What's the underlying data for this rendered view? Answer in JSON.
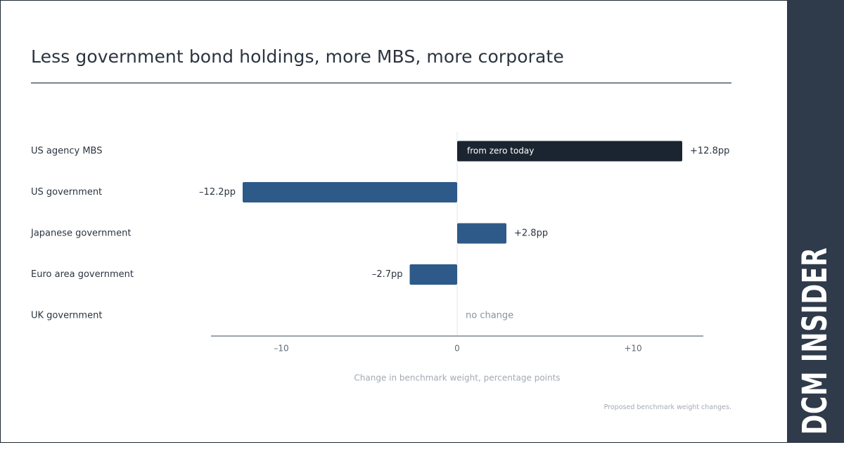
{
  "title": "Less government bond holdings, more MBS, more corporate",
  "footnote": "Proposed benchmark weight changes.",
  "brand": "DCM INSIDER",
  "colors": {
    "bar": "#2d5a88",
    "highlight_bar": "#1b2431",
    "axis": "#7c8590",
    "label": "#2b3440",
    "muted": "#8892a0",
    "sidebar": "#2f3a4a"
  },
  "chart_data": {
    "type": "bar",
    "orientation": "horizontal",
    "categories": [
      "US agency MBS",
      "US government",
      "Japanese government",
      "Euro area government",
      "UK government"
    ],
    "values": [
      12.8,
      -12.2,
      2.8,
      -2.7,
      0
    ],
    "value_labels": [
      "+12.8pp",
      "–12.2pp",
      "+2.8pp",
      "–2.7pp",
      ""
    ],
    "bar_annotations": [
      "from zero today",
      "",
      "",
      "",
      ""
    ],
    "zero_annotation": "no change",
    "xlabel": "Change in benchmark weight, percentage points",
    "xlim": [
      -14,
      14
    ],
    "xticks": [
      -10,
      0,
      10
    ],
    "xtick_labels": [
      "–10",
      "0",
      "+10"
    ],
    "highlight_index": 0
  }
}
